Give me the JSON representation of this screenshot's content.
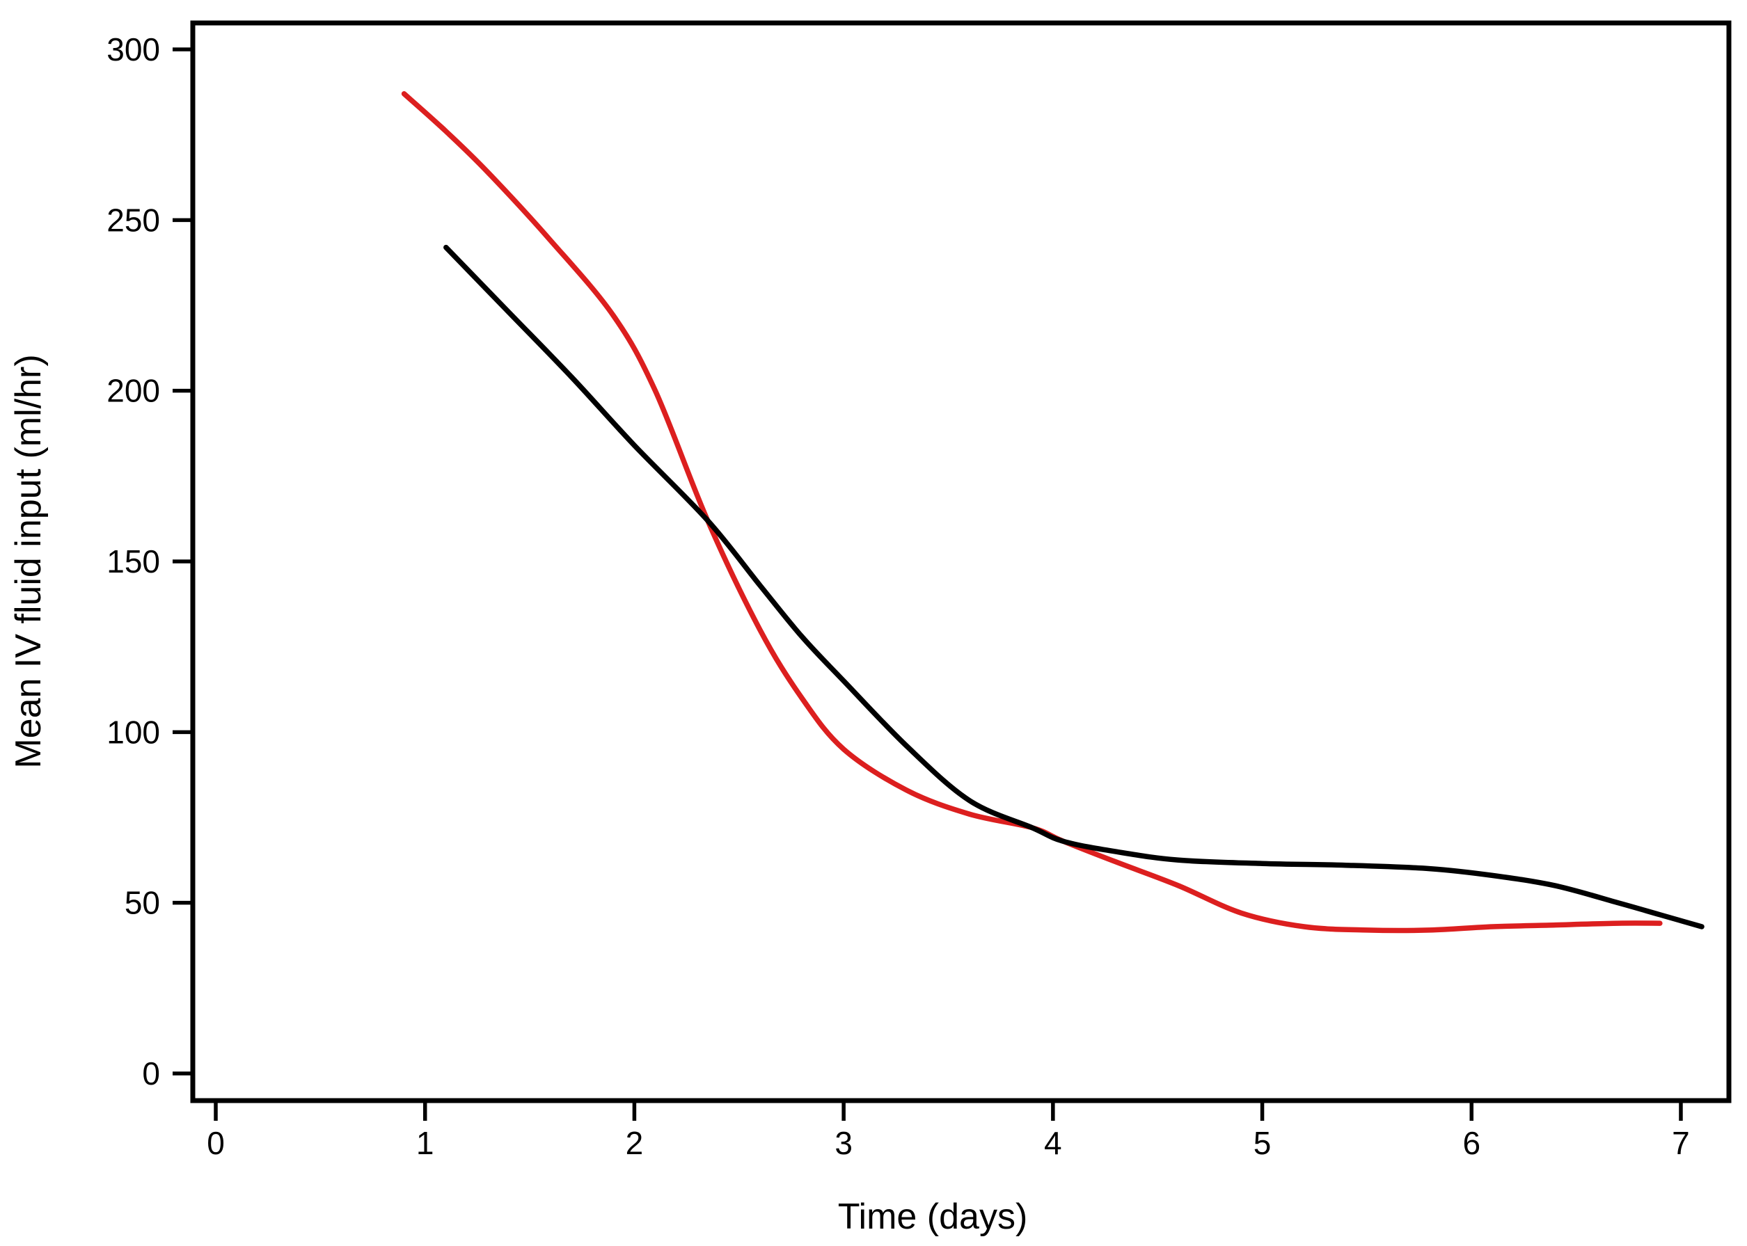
{
  "chart_data": {
    "type": "line",
    "title": "",
    "xlabel": "Time (days)",
    "ylabel": "Mean IV fluid input (ml/hr)",
    "x_ticks": [
      0,
      1,
      2,
      3,
      4,
      5,
      6,
      7
    ],
    "y_ticks": [
      0,
      50,
      100,
      150,
      200,
      250,
      300
    ],
    "xlim": [
      -0.11,
      7.23
    ],
    "ylim": [
      -8,
      308
    ],
    "grid": false,
    "legend_position": "none",
    "background_color": "#ffffff",
    "axis_color": "#000000",
    "series": [
      {
        "name": "red-series",
        "color": "#dc1f1f",
        "points": [
          [
            0.9,
            287
          ],
          [
            1.1,
            276
          ],
          [
            1.3,
            264
          ],
          [
            1.6,
            244
          ],
          [
            1.9,
            222
          ],
          [
            2.1,
            200
          ],
          [
            2.35,
            162
          ],
          [
            2.6,
            130
          ],
          [
            2.8,
            110
          ],
          [
            3.0,
            95
          ],
          [
            3.3,
            83
          ],
          [
            3.6,
            76
          ],
          [
            3.9,
            72
          ],
          [
            4.05,
            68
          ],
          [
            4.3,
            62
          ],
          [
            4.6,
            55
          ],
          [
            4.9,
            47
          ],
          [
            5.2,
            43
          ],
          [
            5.5,
            42
          ],
          [
            5.8,
            42
          ],
          [
            6.1,
            43
          ],
          [
            6.4,
            43.5
          ],
          [
            6.7,
            44
          ],
          [
            6.9,
            44
          ]
        ]
      },
      {
        "name": "black-series",
        "color": "#000000",
        "points": [
          [
            1.1,
            242
          ],
          [
            1.4,
            223
          ],
          [
            1.7,
            204
          ],
          [
            2.0,
            184
          ],
          [
            2.35,
            162
          ],
          [
            2.6,
            143
          ],
          [
            2.8,
            128
          ],
          [
            3.0,
            115
          ],
          [
            3.3,
            96
          ],
          [
            3.6,
            80
          ],
          [
            3.9,
            72
          ],
          [
            4.05,
            68
          ],
          [
            4.3,
            65
          ],
          [
            4.6,
            62.5
          ],
          [
            5.0,
            61.5
          ],
          [
            5.4,
            61
          ],
          [
            5.8,
            60
          ],
          [
            6.1,
            58
          ],
          [
            6.4,
            55
          ],
          [
            6.7,
            50
          ],
          [
            6.9,
            46.5
          ],
          [
            7.1,
            43
          ]
        ]
      }
    ]
  }
}
